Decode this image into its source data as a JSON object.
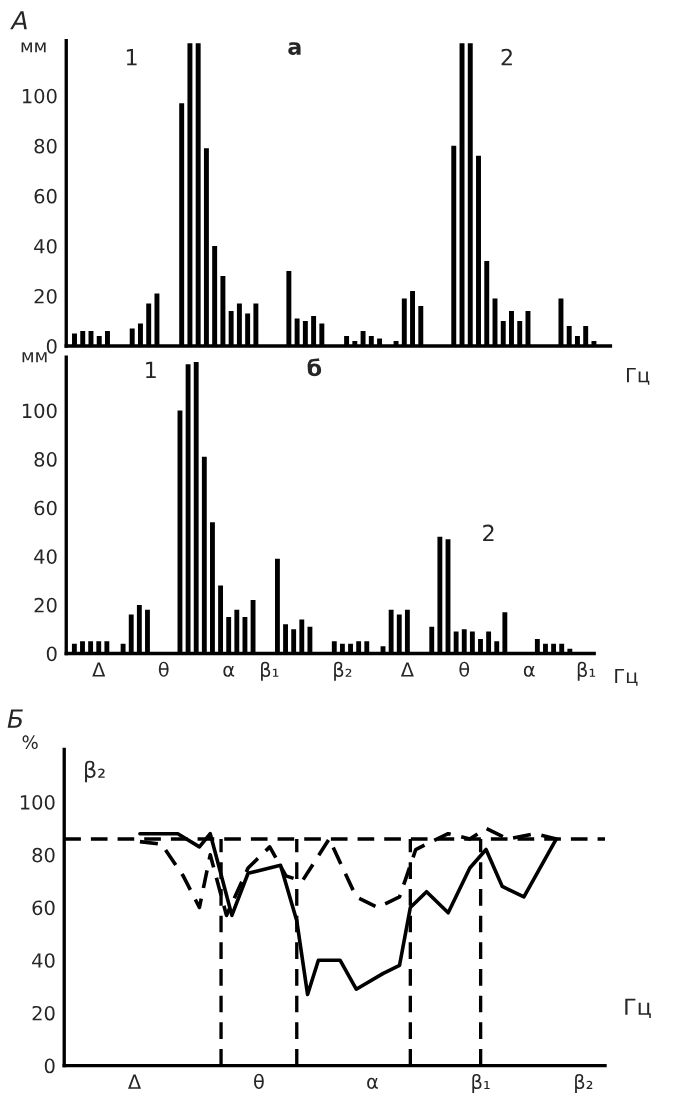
{
  "chart_data": [
    {
      "type": "bar",
      "title": "а",
      "ylabel": "мм",
      "xlabel": "Гц",
      "annotations": [
        "А",
        "1",
        "2"
      ],
      "color": "#000000",
      "categories": [
        null,
        null,
        null,
        null,
        null,
        null,
        null,
        null,
        null,
        null,
        null,
        null,
        null,
        null,
        null,
        null,
        null,
        null,
        null,
        null,
        null,
        null,
        null,
        null,
        null,
        null,
        null,
        null,
        null,
        null,
        null,
        null,
        null,
        null,
        null,
        null,
        null,
        null,
        null,
        null,
        null,
        null,
        null,
        null,
        null,
        null,
        null,
        null,
        null,
        null,
        null,
        null,
        null,
        null,
        null,
        null,
        null,
        null,
        null,
        null,
        null,
        null,
        null,
        null,
        null
      ],
      "values": [
        5,
        6,
        6,
        4,
        6,
        null,
        null,
        7,
        9,
        17,
        21,
        null,
        null,
        97,
        121,
        121,
        79,
        40,
        28,
        14,
        17,
        13,
        17,
        null,
        null,
        null,
        30,
        11,
        10,
        12,
        9,
        null,
        null,
        4,
        2,
        6,
        4,
        3,
        null,
        2,
        19,
        22,
        16,
        null,
        null,
        null,
        80,
        121,
        121,
        76,
        34,
        19,
        10,
        14,
        10,
        14,
        null,
        null,
        null,
        19,
        8,
        4,
        8,
        2,
        null
      ],
      "ylim": [
        0,
        122
      ],
      "yticks": [
        0,
        20,
        40,
        60,
        80,
        100
      ]
    },
    {
      "type": "bar",
      "title": "б",
      "ylabel": "мм",
      "xlabel": "Гц",
      "annotations": [
        "1",
        "2"
      ],
      "color": "#000000",
      "categories": [
        null,
        null,
        null,
        "Δ",
        null,
        null,
        null,
        null,
        null,
        null,
        null,
        "θ",
        null,
        null,
        null,
        null,
        null,
        null,
        null,
        "α",
        null,
        null,
        null,
        null,
        "β₁",
        null,
        null,
        null,
        null,
        null,
        null,
        null,
        null,
        "β₂",
        null,
        null,
        null,
        null,
        null,
        null,
        null,
        "Δ",
        null,
        null,
        null,
        null,
        null,
        null,
        "θ",
        null,
        null,
        null,
        null,
        null,
        null,
        null,
        "α",
        null,
        null,
        null,
        null,
        null,
        null,
        "β₁"
      ],
      "values": [
        4,
        5,
        5,
        5,
        5,
        null,
        4,
        16,
        20,
        18,
        null,
        null,
        null,
        100,
        119,
        120,
        81,
        54,
        28,
        15,
        18,
        15,
        22,
        null,
        null,
        39,
        12,
        10,
        14,
        11,
        null,
        null,
        5,
        4,
        4,
        5,
        5,
        null,
        3,
        18,
        16,
        18,
        null,
        null,
        11,
        48,
        47,
        9,
        10,
        9,
        6,
        9,
        5,
        17,
        null,
        null,
        null,
        6,
        4,
        4,
        4,
        2,
        null,
        null
      ],
      "ylim": [
        0,
        122
      ],
      "yticks": [
        0,
        20,
        40,
        60,
        80,
        100
      ]
    },
    {
      "type": "line",
      "ylabel": "%",
      "annotations": [
        "Б",
        "β₂",
        "Гц"
      ],
      "series": [
        {
          "color": "#000000",
          "line_style": "solid",
          "values": [
            null,
            null,
            null,
            null,
            null,
            null,
            null,
            null,
            null,
            null,
            null,
            null,
            null,
            null,
            88,
            null,
            null,
            null,
            null,
            null,
            null,
            88,
            null,
            null,
            null,
            83,
            null,
            88,
            null,
            null,
            null,
            57,
            null,
            null,
            73,
            null,
            null,
            null,
            null,
            null,
            76,
            null,
            null,
            55,
            null,
            27,
            null,
            40,
            null,
            null,
            null,
            40,
            null,
            null,
            29,
            null,
            null,
            null,
            null,
            35,
            null,
            null,
            38,
            null,
            60,
            null,
            null,
            66,
            null,
            null,
            null,
            58,
            null,
            null,
            null,
            75,
            null,
            null,
            82,
            null,
            null,
            68,
            null,
            null,
            null,
            64,
            null,
            null,
            null,
            null,
            null,
            86,
            null,
            null,
            null,
            null,
            null,
            null,
            null,
            null,
            null
          ]
        },
        {
          "color": "#000000",
          "line_style": "dashed",
          "values": [
            null,
            null,
            null,
            null,
            null,
            null,
            null,
            null,
            null,
            null,
            null,
            null,
            null,
            null,
            85,
            null,
            null,
            null,
            84,
            null,
            null,
            null,
            72,
            null,
            null,
            60,
            null,
            80,
            null,
            null,
            57,
            null,
            null,
            null,
            75,
            null,
            null,
            null,
            83,
            null,
            null,
            72,
            null,
            null,
            70,
            null,
            null,
            null,
            null,
            86,
            null,
            null,
            null,
            null,
            64,
            null,
            null,
            null,
            60,
            null,
            null,
            null,
            64,
            null,
            null,
            82,
            null,
            null,
            null,
            null,
            null,
            88,
            null,
            null,
            null,
            86,
            null,
            null,
            90,
            null,
            null,
            null,
            86,
            null,
            null,
            null,
            null,
            88,
            null,
            null,
            null,
            86,
            null,
            null,
            null,
            null,
            null,
            null,
            null,
            null,
            null
          ]
        }
      ],
      "categories": [
        null,
        null,
        null,
        null,
        null,
        null,
        null,
        null,
        null,
        null,
        null,
        null,
        null,
        "Δ",
        null,
        null,
        null,
        null,
        null,
        null,
        null,
        null,
        null,
        null,
        null,
        null,
        null,
        null,
        null,
        null,
        null,
        null,
        null,
        null,
        null,
        null,
        "θ",
        null,
        null,
        null,
        null,
        null,
        null,
        null,
        null,
        null,
        null,
        null,
        null,
        null,
        null,
        null,
        null,
        null,
        null,
        null,
        null,
        "α",
        null,
        null,
        null,
        null,
        null,
        null,
        null,
        null,
        null,
        null,
        null,
        null,
        null,
        null,
        null,
        null,
        null,
        null,
        null,
        "β₁",
        null,
        null,
        null,
        null,
        null,
        null,
        null,
        null,
        null,
        null,
        null,
        null,
        null,
        null,
        null,
        null,
        null,
        null,
        "β₂",
        null,
        null,
        null,
        null
      ],
      "ylim": [
        0,
        120
      ],
      "yticks": [
        0,
        20,
        40,
        60,
        80,
        100
      ],
      "ref_lines": [
        {
          "axis": "y",
          "value": 86,
          "line_style": "dashed"
        }
      ]
    }
  ]
}
